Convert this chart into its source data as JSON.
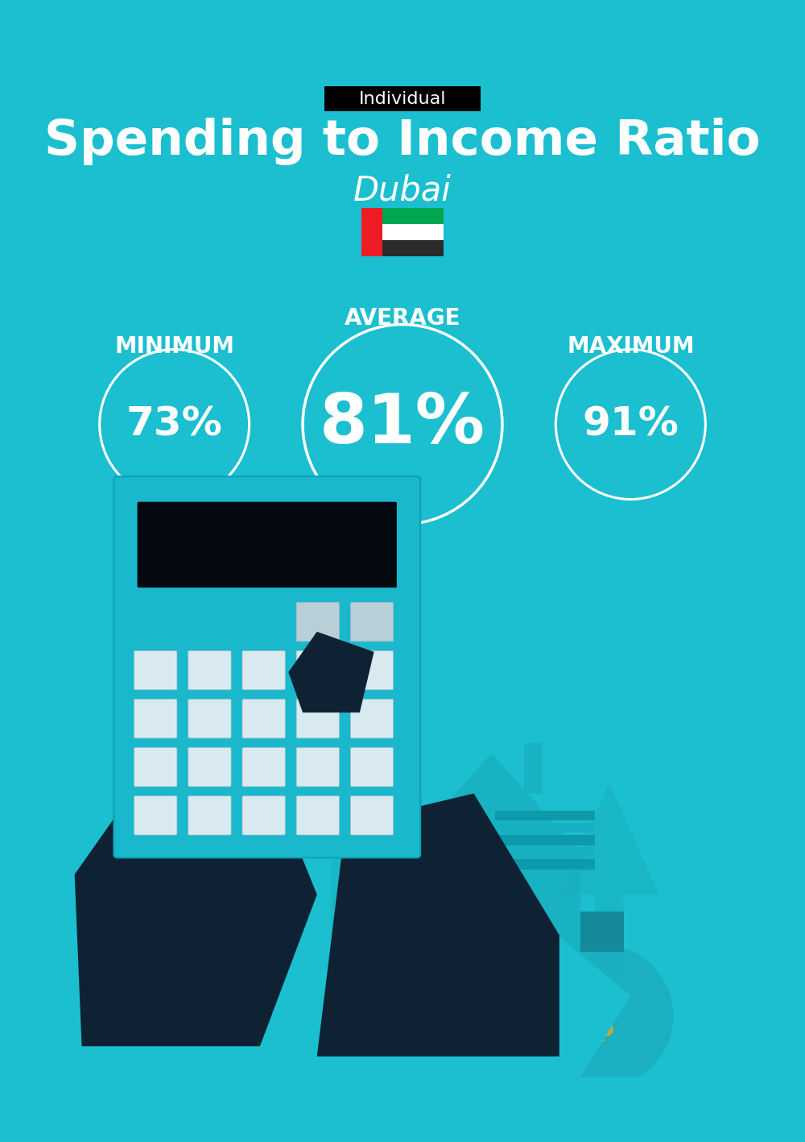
{
  "bg_color": "#1bbfcf",
  "title": "Spending to Income Ratio",
  "subtitle": "Dubai",
  "tag_text": "Individual",
  "tag_bg": "#000000",
  "tag_text_color": "#ffffff",
  "title_color": "#ffffff",
  "subtitle_color": "#ffffff",
  "min_label": "MINIMUM",
  "avg_label": "AVERAGE",
  "max_label": "MAXIMUM",
  "min_value": "73%",
  "avg_value": "81%",
  "max_value": "91%",
  "circle_edge_color": "#ffffff",
  "circle_text_color": "#ffffff",
  "label_color": "#ffffff",
  "min_fontsize": 36,
  "avg_fontsize": 62,
  "max_fontsize": 36,
  "label_fontsize": 20,
  "title_fontsize": 44,
  "subtitle_fontsize": 30,
  "tag_fontsize": 16,
  "arrow_color": "#19b0c0",
  "house_color": "#18aec0",
  "dark_color": "#0e2233",
  "calc_color": "#1ab8cc",
  "money_color": "#1aafc0",
  "dollar_color": "#c8a830"
}
